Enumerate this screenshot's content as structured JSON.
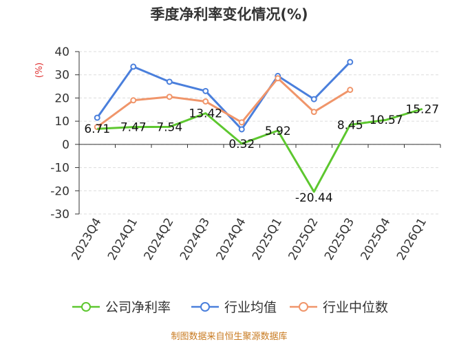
{
  "chart_data": {
    "type": "line",
    "title": "季度净利率变化情况(%)",
    "ylabel": "(%)",
    "xlabel": "",
    "ylim": [
      -30,
      40
    ],
    "yticks": [
      40,
      30,
      20,
      10,
      0,
      -10,
      -20,
      -30
    ],
    "categories": [
      "2023Q4",
      "2024Q1",
      "2024Q2",
      "2024Q3",
      "2024Q4",
      "2025Q1",
      "2025Q2",
      "2025Q3",
      "2025Q4",
      "2026Q1"
    ],
    "grid": true,
    "legend_position": "bottom",
    "series": [
      {
        "name": "公司净利率",
        "color": "#5dc72f",
        "values": [
          6.71,
          7.47,
          7.54,
          13.42,
          0.32,
          5.92,
          -20.44,
          8.45,
          10.57,
          15.27
        ],
        "labels": [
          "6.71",
          "7.47",
          "7.54",
          "13.42",
          "0.32",
          "5.92",
          "-20.44",
          "8.45",
          "10.57",
          "15.27"
        ],
        "markers": false
      },
      {
        "name": "行业均值",
        "color": "#4a7fdc",
        "values": [
          11.5,
          33.5,
          27.0,
          23.0,
          6.5,
          29.5,
          19.5,
          35.5,
          null,
          null
        ],
        "markers": true
      },
      {
        "name": "行业中位数",
        "color": "#f0956a",
        "values": [
          7.5,
          19.0,
          20.5,
          18.5,
          9.5,
          28.5,
          14.0,
          23.5,
          null,
          null
        ],
        "markers": true
      }
    ]
  },
  "source": "制图数据来自恒生聚源数据库"
}
